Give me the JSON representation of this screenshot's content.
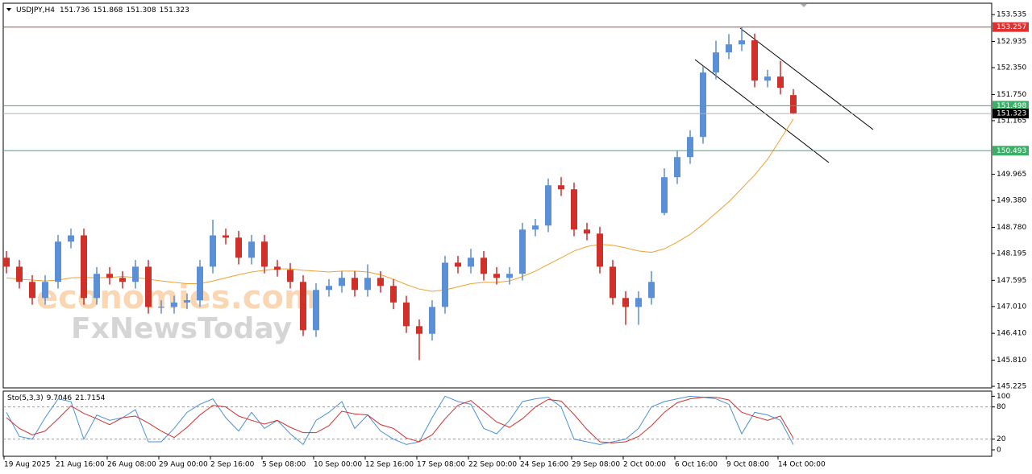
{
  "chart_data": [
    {
      "type": "candlestick",
      "title": "USDJPY,H4",
      "categories": [
        "19 Aug 2025",
        null,
        null,
        null,
        "21 Aug 16:00",
        null,
        null,
        null,
        "26 Aug 08:00",
        null,
        null,
        null,
        "29 Aug 00:00",
        null,
        null,
        null,
        "2 Sep 16:00",
        null,
        null,
        null,
        "5 Sep 08:00",
        null,
        null,
        null,
        "10 Sep 00:00",
        null,
        null,
        null,
        "12 Sep 16:00",
        null,
        null,
        null,
        "17 Sep 08:00",
        null,
        null,
        null,
        "22 Sep 00:00",
        null,
        null,
        null,
        "24 Sep 16:00",
        null,
        null,
        null,
        "29 Sep 08:00",
        null,
        null,
        null,
        "2 Oct 00:00",
        null,
        null,
        null,
        "6 Oct 16:00",
        null,
        null,
        null,
        "9 Oct 08:00",
        null,
        null,
        null,
        "14 Oct 00:00",
        null
      ],
      "open": [
        148.1,
        147.9,
        147.56,
        147.2,
        147.56,
        148.46,
        148.6,
        147.2,
        147.74,
        147.65,
        147.56,
        147.9,
        147.0,
        147.0,
        147.1,
        147.15,
        147.9,
        148.6,
        148.55,
        148.1,
        148.46,
        147.9,
        147.83,
        147.56,
        146.48,
        147.38,
        147.47,
        147.65,
        147.38,
        147.65,
        147.47,
        147.1,
        146.57,
        146.4,
        147.0,
        147.99,
        147.9,
        148.1,
        147.74,
        147.65,
        147.74,
        148.73,
        148.82,
        149.72,
        149.63,
        148.73,
        148.64,
        147.9,
        147.2,
        147.0,
        147.2,
        149.1,
        149.9,
        150.35,
        150.8,
        152.24,
        152.69,
        152.87,
        152.96,
        152.06,
        152.15,
        151.736
      ],
      "high": [
        148.25,
        148.05,
        147.71,
        147.71,
        148.61,
        148.75,
        148.75,
        147.89,
        147.89,
        147.8,
        148.05,
        148.05,
        147.15,
        147.25,
        147.3,
        148.05,
        148.95,
        148.75,
        148.7,
        148.61,
        148.61,
        148.05,
        147.98,
        147.71,
        147.53,
        147.62,
        147.8,
        147.8,
        147.95,
        147.8,
        147.62,
        147.25,
        146.72,
        147.15,
        148.14,
        148.14,
        148.3,
        148.25,
        147.89,
        147.89,
        148.88,
        148.97,
        149.87,
        149.9,
        149.78,
        148.88,
        148.79,
        148.05,
        147.35,
        147.35,
        147.8,
        150.1,
        150.5,
        150.95,
        152.39,
        152.95,
        153.1,
        153.25,
        153.11,
        152.3,
        152.5,
        151.868
      ],
      "low": [
        147.75,
        147.41,
        147.05,
        147.05,
        147.41,
        148.31,
        147.05,
        147.05,
        147.5,
        147.41,
        147.41,
        146.85,
        146.85,
        146.85,
        146.95,
        147.0,
        147.75,
        148.4,
        147.95,
        147.95,
        147.75,
        147.68,
        147.41,
        146.35,
        146.33,
        147.23,
        147.32,
        147.23,
        147.23,
        147.32,
        146.95,
        146.42,
        145.81,
        146.25,
        146.85,
        147.75,
        147.75,
        147.59,
        147.5,
        147.5,
        147.59,
        148.58,
        148.67,
        149.48,
        148.58,
        148.49,
        147.75,
        147.05,
        146.6,
        146.6,
        147.05,
        149.05,
        149.75,
        150.2,
        150.65,
        152.09,
        152.54,
        152.72,
        151.91,
        151.91,
        151.75,
        151.308
      ],
      "close": [
        147.9,
        147.56,
        147.2,
        147.56,
        148.46,
        148.6,
        147.2,
        147.74,
        147.65,
        147.56,
        147.9,
        147.0,
        147.0,
        147.1,
        147.15,
        147.9,
        148.6,
        148.55,
        148.1,
        148.46,
        147.9,
        147.83,
        147.56,
        146.48,
        147.38,
        147.47,
        147.65,
        147.38,
        147.65,
        147.47,
        147.1,
        146.57,
        146.4,
        147.0,
        147.99,
        147.9,
        148.1,
        147.74,
        147.65,
        147.74,
        148.73,
        148.82,
        149.72,
        149.63,
        148.73,
        148.64,
        147.9,
        147.2,
        147.0,
        147.2,
        147.56,
        149.9,
        150.35,
        150.8,
        152.24,
        152.69,
        152.87,
        152.96,
        152.06,
        152.15,
        151.9,
        151.323
      ],
      "up_color": "#5b8fd6",
      "down_color": "#d0302a",
      "overlay_line": {
        "color": "#f0a030",
        "values": [
          147.65,
          147.62,
          147.6,
          147.58,
          147.6,
          147.65,
          147.66,
          147.65,
          147.66,
          147.68,
          147.66,
          147.62,
          147.58,
          147.55,
          147.52,
          147.52,
          147.58,
          147.65,
          147.72,
          147.78,
          147.82,
          147.85,
          147.85,
          147.82,
          147.8,
          147.78,
          147.8,
          147.8,
          147.78,
          147.72,
          147.62,
          147.5,
          147.4,
          147.35,
          147.38,
          147.45,
          147.52,
          147.55,
          147.55,
          147.58,
          147.68,
          147.8,
          147.95,
          148.1,
          148.25,
          148.35,
          148.4,
          148.38,
          148.32,
          148.25,
          148.22,
          148.3,
          148.45,
          148.62,
          148.85,
          149.1,
          149.35,
          149.65,
          149.95,
          150.3,
          150.75,
          151.2
        ]
      },
      "levels": [
        {
          "value": 153.257,
          "color": "#e03030"
        },
        {
          "value": 151.498,
          "color": "#3cae6a"
        },
        {
          "value": 150.493,
          "color": "#3cae6a"
        }
      ],
      "price_line_color": "#b0b0b0",
      "ylim": [
        145.19,
        153.79
      ],
      "yticks": [
        145.225,
        {
          "value": 145.81,
          "label": "145.810"
        },
        {
          "value": 146.41,
          "label": "146.410"
        },
        {
          "value": 147.01,
          "label": "147.010"
        },
        147.595,
        148.195,
        {
          "value": 148.78,
          "label": "148.780"
        },
        {
          "value": 149.38,
          "label": "149.380"
        },
        149.965,
        151.165,
        {
          "value": 151.75,
          "label": "151.750"
        },
        {
          "value": 152.35,
          "label": "152.350"
        },
        152.935,
        153.535
      ],
      "watermark": [
        "economies.com",
        "FxNewsToday"
      ]
    },
    {
      "type": "line",
      "title": "Sto(5,3,3)",
      "series": [
        {
          "color": "#4a90d9",
          "values": [
            70,
            25,
            20,
            60,
            95,
            90,
            20,
            65,
            55,
            60,
            75,
            15,
            15,
            40,
            70,
            85,
            95,
            60,
            35,
            70,
            40,
            55,
            30,
            10,
            55,
            70,
            90,
            40,
            65,
            35,
            20,
            10,
            15,
            60,
            100,
            90,
            85,
            40,
            30,
            55,
            90,
            95,
            98,
            80,
            20,
            15,
            10,
            15,
            20,
            40,
            80,
            90,
            95,
            100,
            98,
            95,
            85,
            30,
            70,
            65,
            55,
            9.7046
          ]
        },
        {
          "color": "#d03030",
          "values": [
            60,
            40,
            28,
            35,
            58,
            82,
            68,
            58,
            47,
            60,
            63,
            50,
            35,
            23,
            42,
            65,
            83,
            80,
            63,
            55,
            48,
            55,
            42,
            32,
            32,
            45,
            72,
            67,
            65,
            47,
            40,
            22,
            15,
            28,
            58,
            83,
            92,
            72,
            52,
            42,
            58,
            80,
            94,
            91,
            66,
            38,
            15,
            13,
            15,
            25,
            45,
            70,
            88,
            95,
            98,
            98,
            93,
            70,
            62,
            55,
            63,
            21.7154
          ]
        }
      ],
      "ylim": [
        -12,
        108
      ],
      "yticks": [
        0,
        20,
        80,
        100
      ]
    }
  ]
}
